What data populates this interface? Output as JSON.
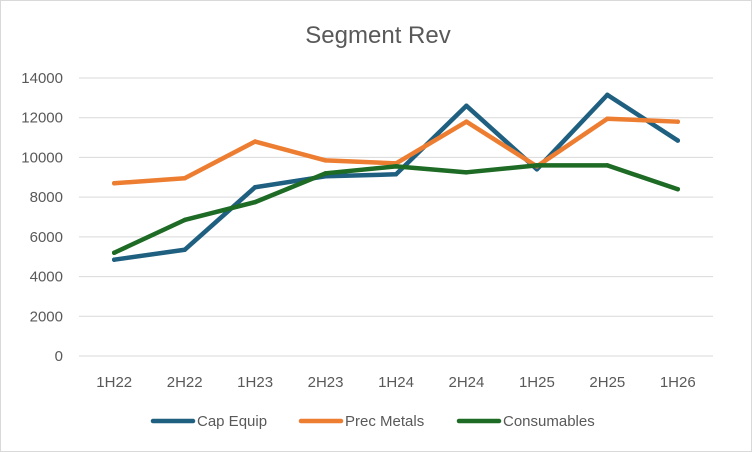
{
  "chart_data": {
    "type": "line",
    "title": "Segment Rev",
    "xlabel": "",
    "ylabel": "",
    "categories": [
      "1H22",
      "2H22",
      "1H23",
      "2H23",
      "1H24",
      "2H24",
      "1H25",
      "2H25",
      "1H26"
    ],
    "ylim": [
      0,
      14000
    ],
    "yticks": [
      0,
      2000,
      4000,
      6000,
      8000,
      10000,
      12000,
      14000
    ],
    "grid": true,
    "legend_position": "bottom",
    "series": [
      {
        "name": "Cap Equip",
        "color": "#1f5f80",
        "values": [
          4850,
          5350,
          8500,
          9050,
          9150,
          12600,
          9400,
          13150,
          10850
        ]
      },
      {
        "name": "Prec Metals",
        "color": "#ed7d31",
        "values": [
          8700,
          8950,
          10800,
          9850,
          9700,
          11800,
          9550,
          11950,
          11800
        ]
      },
      {
        "name": "Consumables",
        "color": "#1e6b25",
        "values": [
          5200,
          6850,
          7750,
          9200,
          9550,
          9250,
          9600,
          9600,
          8400
        ]
      }
    ]
  }
}
